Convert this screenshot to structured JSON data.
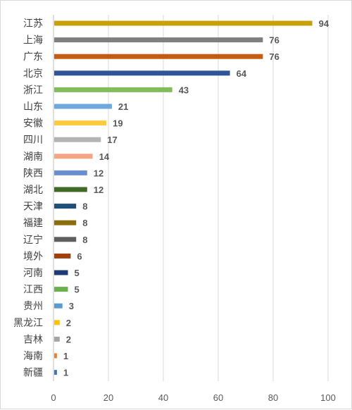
{
  "chart_data": {
    "type": "bar",
    "orientation": "horizontal",
    "title": "",
    "xlabel": "",
    "ylabel": "",
    "xlim": [
      0,
      100
    ],
    "x_ticks": [
      0,
      20,
      40,
      60,
      80,
      100
    ],
    "grid": true,
    "legend": "none",
    "categories": [
      "江苏",
      "上海",
      "广东",
      "北京",
      "浙江",
      "山东",
      "安徽",
      "四川",
      "湖南",
      "陕西",
      "湖北",
      "天津",
      "福建",
      "辽宁",
      "境外",
      "河南",
      "江西",
      "贵州",
      "黑龙江",
      "吉林",
      "海南",
      "新疆"
    ],
    "values": [
      94,
      76,
      76,
      64,
      43,
      21,
      19,
      17,
      14,
      12,
      12,
      8,
      8,
      8,
      6,
      5,
      5,
      3,
      2,
      2,
      1,
      1
    ],
    "colors": [
      "#c9a00a",
      "#7f7f7f",
      "#c55a11",
      "#2f5597",
      "#82bd5b",
      "#6fa8dc",
      "#ffc93c",
      "#b3b3b3",
      "#f4a582",
      "#6a8fd1",
      "#3f6b26",
      "#1f4e79",
      "#8c6d0b",
      "#5f5f5f",
      "#a0400c",
      "#1f3a78",
      "#6ab04c",
      "#5b9bd5",
      "#ffc000",
      "#a5a5a5",
      "#ed7d31",
      "#4472c4"
    ]
  }
}
